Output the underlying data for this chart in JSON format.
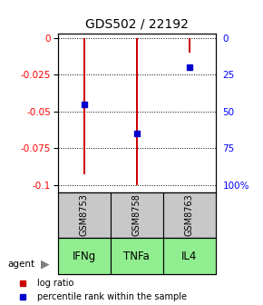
{
  "title": "GDS502 / 22192",
  "samples": [
    "GSM8753",
    "GSM8758",
    "GSM8763"
  ],
  "agents": [
    "IFNg",
    "TNFa",
    "IL4"
  ],
  "log_ratios": [
    -0.093,
    -0.1005,
    -0.0097
  ],
  "percentile_ranks": [
    0.45,
    0.65,
    0.2
  ],
  "bar_color": "#cc0000",
  "dot_color": "#0000cc",
  "left_yticks": [
    0,
    -0.025,
    -0.05,
    -0.075,
    -0.1
  ],
  "right_yticks": [
    100,
    75,
    50,
    25,
    0
  ],
  "right_ytick_labels": [
    "100%",
    "75",
    "50",
    "25",
    "0"
  ],
  "ylim": [
    -0.105,
    0.003
  ],
  "sample_box_color": "#c8c8c8",
  "legend_bar_label": "log ratio",
  "legend_dot_label": "percentile rank within the sample",
  "bar_width": 0.04
}
